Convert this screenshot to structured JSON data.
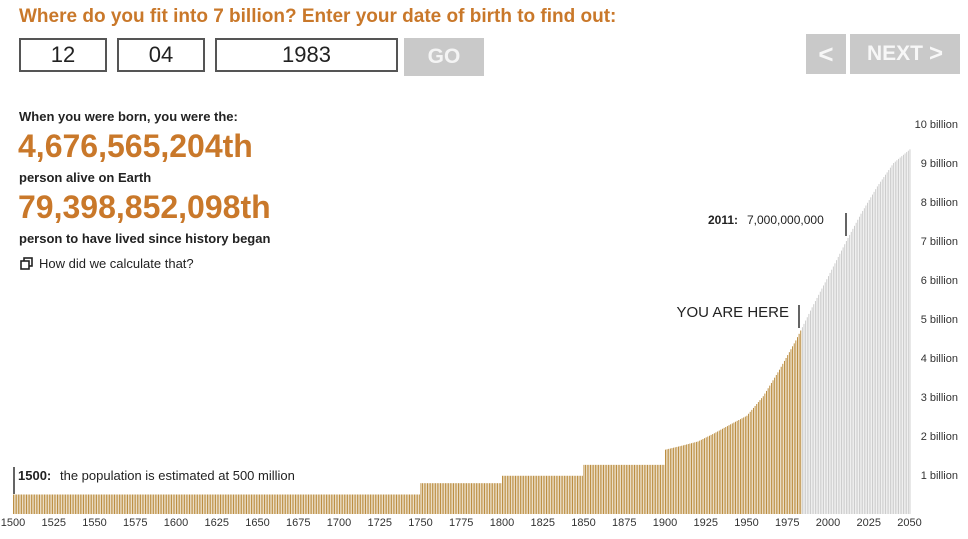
{
  "form": {
    "prompt": "Where do you fit into 7 billion? Enter your date of birth to find out:",
    "day": "12",
    "month": "04",
    "year": "1983",
    "go_label": "GO",
    "prev_label": "<",
    "next_label": "NEXT",
    "next_chevron": ">"
  },
  "results": {
    "born_label": "When you were born, you were the:",
    "alive_rank": "4,676,565,204th",
    "alive_label": "person alive on Earth",
    "ever_rank": "79,398,852,098th",
    "ever_label": "person to have lived since history began",
    "calc_link": "How did we calculate that?"
  },
  "colors": {
    "accent": "#c9782a",
    "bar_past": "#b5832f",
    "bar_future": "#c8c8c8"
  },
  "chart_data": {
    "type": "bar",
    "x_unit": "year",
    "xlim": [
      1500,
      2050
    ],
    "ylim": [
      0,
      10
    ],
    "y_unit": "billion",
    "x_ticks": [
      "1500",
      "1525",
      "1550",
      "1575",
      "1600",
      "1625",
      "1650",
      "1675",
      "1700",
      "1725",
      "1750",
      "1775",
      "1800",
      "1825",
      "1850",
      "1875",
      "1900",
      "1925",
      "1950",
      "1975",
      "2000",
      "2025",
      "2050"
    ],
    "y_ticks": [
      "1 billion",
      "2 billion",
      "3 billion",
      "4 billion",
      "5 billion",
      "6 billion",
      "7 billion",
      "8 billion",
      "9 billion",
      "10 billion"
    ],
    "series_points": [
      {
        "year": 1500,
        "pop": 0.5
      },
      {
        "year": 1750,
        "pop": 0.5
      },
      {
        "year": 1750,
        "pop": 0.79
      },
      {
        "year": 1800,
        "pop": 0.79
      },
      {
        "year": 1800,
        "pop": 0.98
      },
      {
        "year": 1850,
        "pop": 0.98
      },
      {
        "year": 1850,
        "pop": 1.26
      },
      {
        "year": 1900,
        "pop": 1.26
      },
      {
        "year": 1900,
        "pop": 1.65
      },
      {
        "year": 1910,
        "pop": 1.75
      },
      {
        "year": 1920,
        "pop": 1.86
      },
      {
        "year": 1930,
        "pop": 2.07
      },
      {
        "year": 1940,
        "pop": 2.3
      },
      {
        "year": 1950,
        "pop": 2.52
      },
      {
        "year": 1960,
        "pop": 3.02
      },
      {
        "year": 1970,
        "pop": 3.7
      },
      {
        "year": 1980,
        "pop": 4.45
      },
      {
        "year": 1990,
        "pop": 5.3
      },
      {
        "year": 2000,
        "pop": 6.1
      },
      {
        "year": 2011,
        "pop": 7.0
      },
      {
        "year": 2020,
        "pop": 7.7
      },
      {
        "year": 2030,
        "pop": 8.4
      },
      {
        "year": 2040,
        "pop": 9.0
      },
      {
        "year": 2050,
        "pop": 9.35
      }
    ],
    "birth_year": 1983,
    "annotations": {
      "start": {
        "year_label": "1500:",
        "text": "the population is estimated at 500 million"
      },
      "milestone": {
        "year_label": "2011:",
        "text": "7,000,000,000"
      },
      "you": {
        "text": "YOU ARE HERE"
      }
    }
  }
}
